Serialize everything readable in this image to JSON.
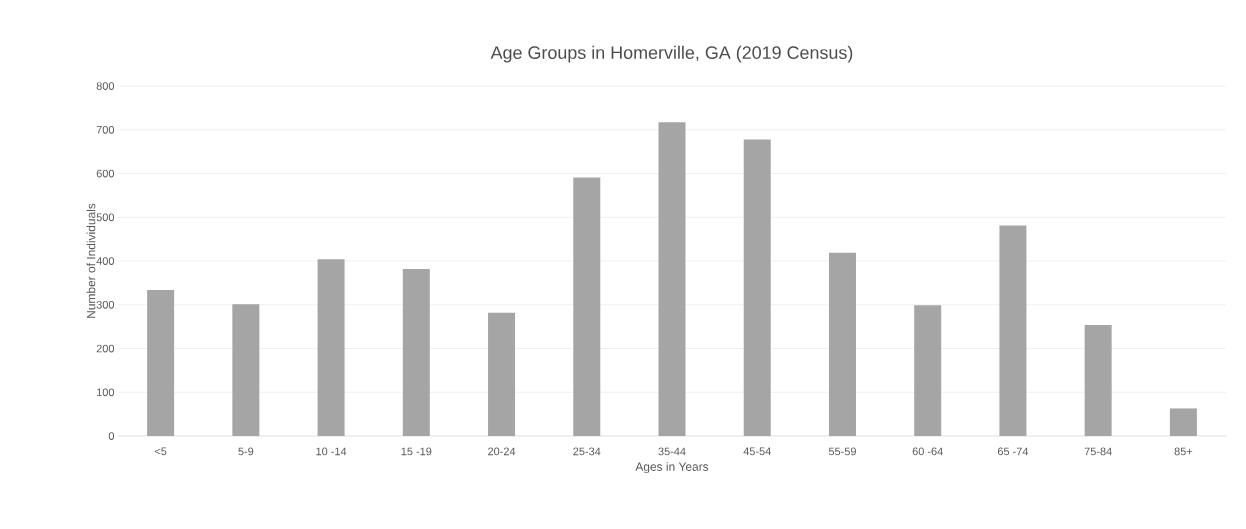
{
  "chart_data": {
    "type": "bar",
    "title": "Age Groups in Homerville, GA (2019 Census)",
    "xlabel": "Ages in Years",
    "ylabel": "Number of Individuals",
    "categories": [
      "<5",
      "5-9",
      "10 -14",
      "15 -19",
      "20-24",
      "25-34",
      "35-44",
      "45-54",
      "55-59",
      "60 -64",
      "65 -74",
      "75-84",
      "85+"
    ],
    "values": [
      334,
      301,
      404,
      382,
      282,
      591,
      717,
      678,
      419,
      299,
      481,
      254,
      63
    ],
    "color": "#a5a5a5",
    "ylim": [
      0,
      800
    ],
    "yticks": [
      0,
      100,
      200,
      300,
      400,
      500,
      600,
      700,
      800
    ],
    "grid": "y"
  }
}
